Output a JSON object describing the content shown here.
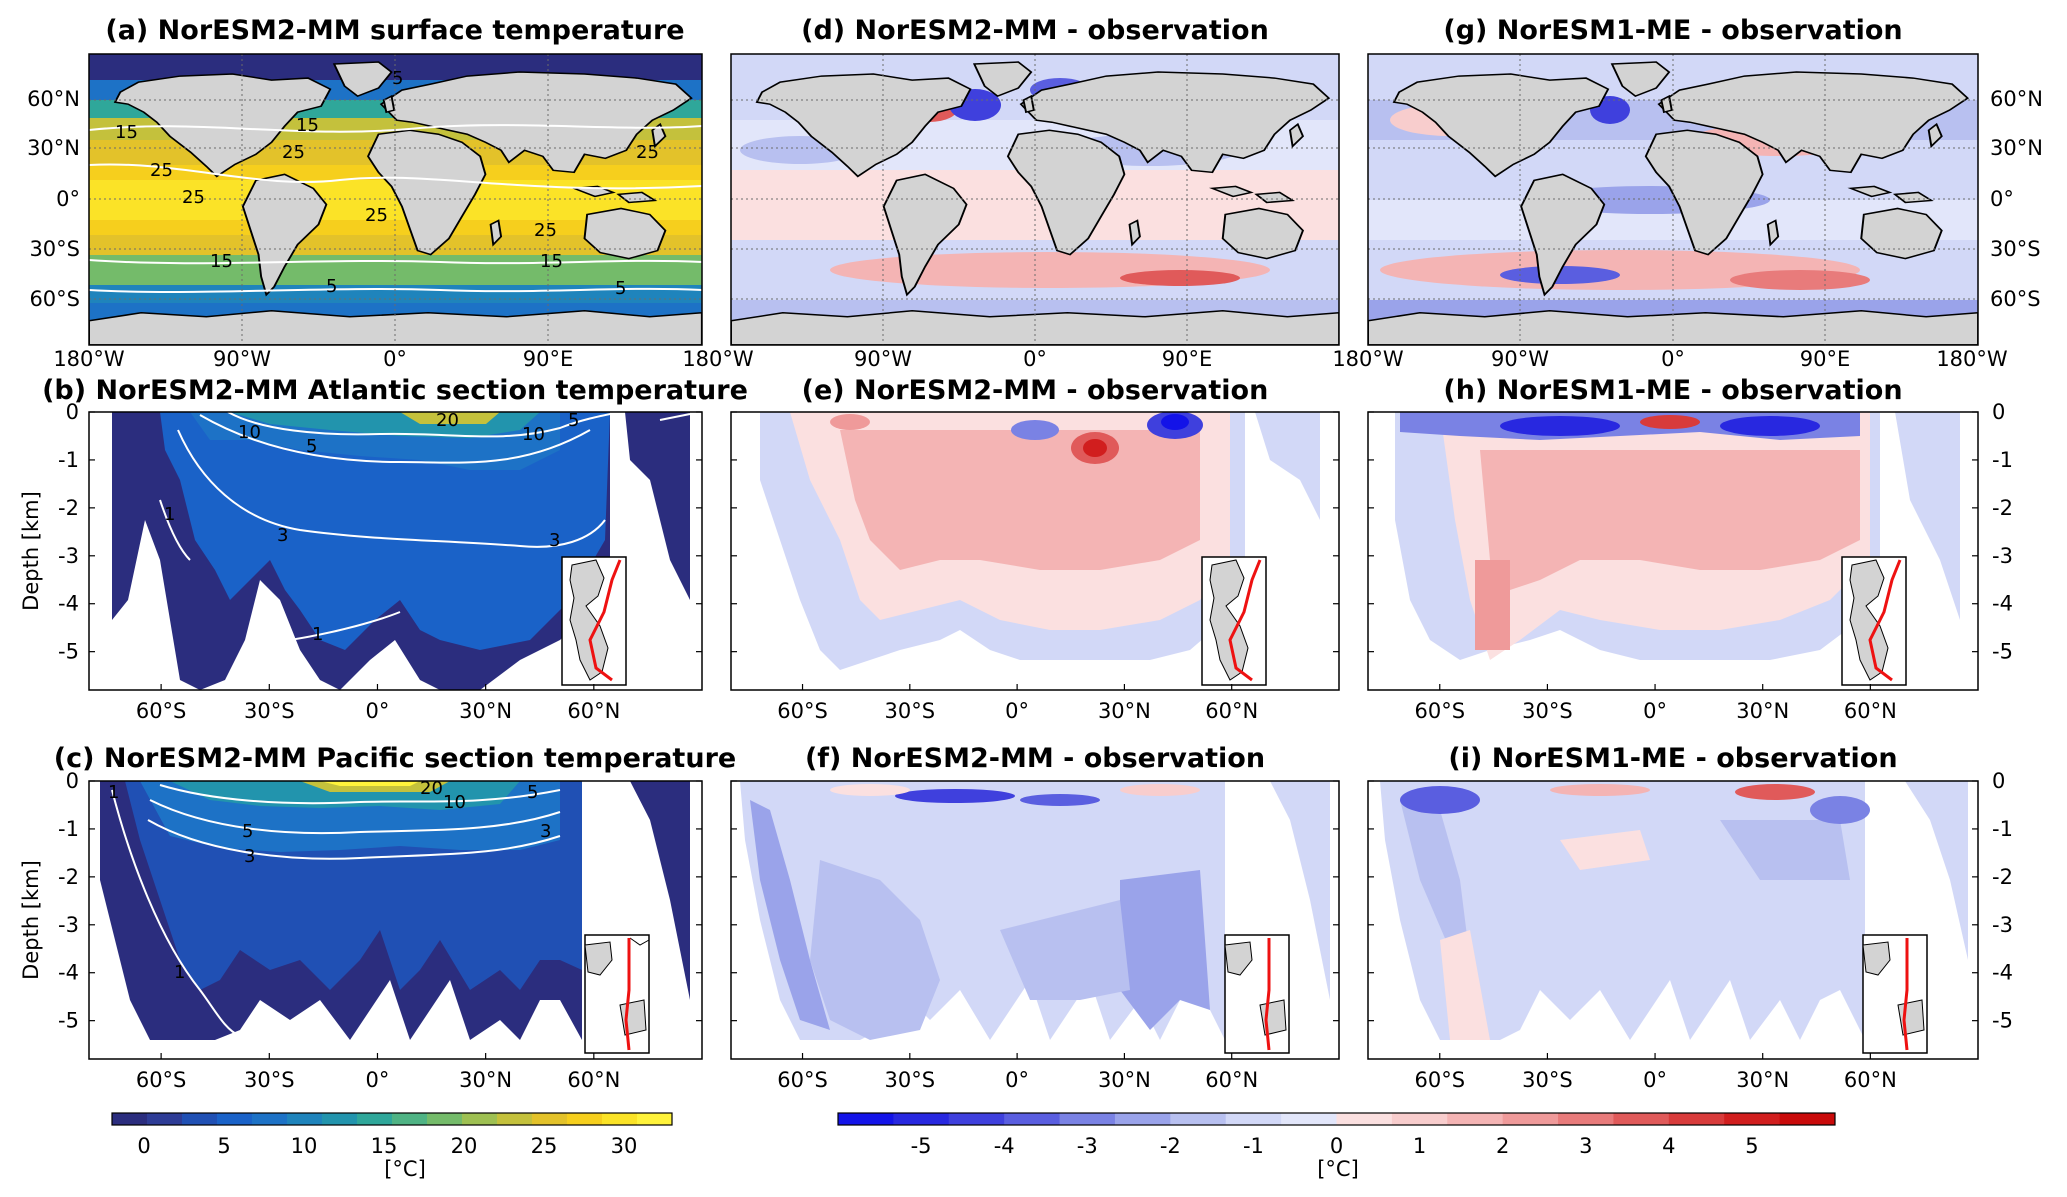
{
  "panels": {
    "a": {
      "title": "(a) NorESM2-MM surface temperature",
      "kind": "map",
      "field": "abs"
    },
    "d": {
      "title": "(d) NorESM2-MM - observation",
      "kind": "map",
      "field": "diff1"
    },
    "g": {
      "title": "(g) NorESM1-ME - observation",
      "kind": "map",
      "field": "diff2"
    },
    "b": {
      "title": "(b) NorESM2-MM Atlantic section temperature",
      "kind": "section",
      "field": "abs",
      "basin": "atlantic"
    },
    "e": {
      "title": "(e) NorESM2-MM - observation",
      "kind": "section",
      "field": "diff1",
      "basin": "atlantic"
    },
    "h": {
      "title": "(h) NorESM1-ME - observation",
      "kind": "section",
      "field": "diff2",
      "basin": "atlantic"
    },
    "c": {
      "title": "(c) NorESM2-MM Pacific section temperature",
      "kind": "section",
      "field": "abs",
      "basin": "pacific"
    },
    "f": {
      "title": "(f) NorESM2-MM - observation",
      "kind": "section",
      "field": "diff1",
      "basin": "pacific"
    },
    "i": {
      "title": "(i) NorESM1-ME - observation",
      "kind": "section",
      "field": "diff2",
      "basin": "pacific"
    }
  },
  "chart_data": [
    {
      "type": "heatmap",
      "id": "map_surface_temperature",
      "panels": [
        "a",
        "d",
        "g"
      ],
      "x_ticks": [
        "180°W",
        "90°W",
        "0°",
        "90°E",
        "180°W"
      ],
      "y_ticks_left": [
        "60°N",
        "30°N",
        "0°",
        "30°S",
        "60°S"
      ],
      "y_ticks_right": [
        "60°N",
        "30°N",
        "0°",
        "30°S",
        "60°S"
      ],
      "xlim": [
        -180,
        180
      ],
      "ylim": [
        -80,
        80
      ],
      "contour_labels_a": [
        "5",
        "15",
        "15",
        "25",
        "25",
        "25",
        "25",
        "25",
        "25",
        "15",
        "15",
        "5",
        "5"
      ],
      "grid": true
    },
    {
      "type": "heatmap",
      "id": "sections",
      "panels": [
        "b",
        "e",
        "h",
        "c",
        "f",
        "i"
      ],
      "ylabel": "Depth [km]",
      "x_ticks": [
        "60°S",
        "30°S",
        "0°",
        "30°N",
        "60°N"
      ],
      "y_ticks": [
        "0",
        "-1",
        "-2",
        "-3",
        "-4",
        "-5"
      ],
      "xlim": [
        -80,
        90
      ],
      "ylim": [
        -5.8,
        0
      ],
      "contour_labels_b": [
        "10",
        "20",
        "10",
        "5",
        "5",
        "1",
        "3",
        "3",
        "1"
      ],
      "contour_labels_c": [
        "1",
        "20",
        "10",
        "5",
        "3",
        "5",
        "3",
        "1"
      ]
    }
  ],
  "colorbar_abs": {
    "ticks": [
      "0",
      "5",
      "10",
      "15",
      "20",
      "25",
      "30"
    ],
    "unit": "[°C]",
    "range": [
      -2,
      33
    ],
    "colors": [
      "#2b2d7e",
      "#2e3c96",
      "#2050b4",
      "#1a62c8",
      "#1d72c6",
      "#1f84bc",
      "#2294ad",
      "#2fa79a",
      "#4fb384",
      "#74bb6a",
      "#9ec052",
      "#c4c13c",
      "#e3c22a",
      "#f6cf1d",
      "#fbe327",
      "#fff33b"
    ]
  },
  "colorbar_diff": {
    "ticks": [
      "-5",
      "-4",
      "-3",
      "-2",
      "-1",
      "0",
      "1",
      "2",
      "3",
      "4",
      "5"
    ],
    "unit": "[°C]",
    "range": [
      -6,
      6
    ],
    "colors": [
      "#1313e8",
      "#2828e0",
      "#3f40dd",
      "#5a5ee0",
      "#7a82e4",
      "#9aa3ea",
      "#b8c0f0",
      "#d2d8f7",
      "#e2e6fa",
      "#fbe0e0",
      "#f8cdcd",
      "#f4b4b4",
      "#ef9a9a",
      "#e87b7b",
      "#e05a5a",
      "#d83b3b",
      "#d11e1e",
      "#c90a0a"
    ]
  }
}
